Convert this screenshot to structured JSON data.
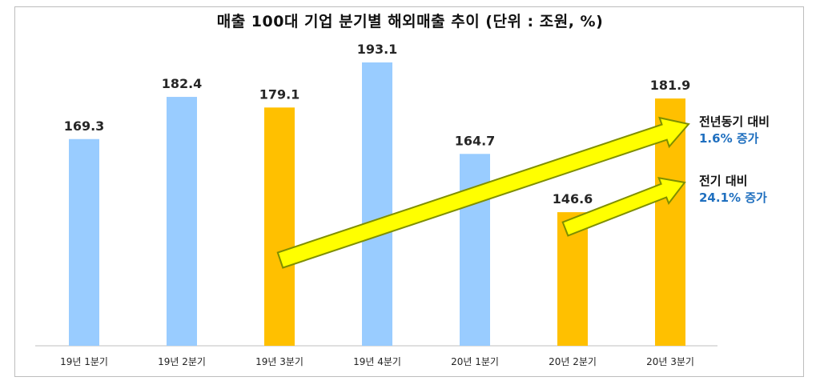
{
  "chart_data": {
    "type": "bar",
    "title": "매출 100대 기업 분기별 해외매출 추이 (단위 : 조원, %)",
    "categories": [
      "19년 1분기",
      "19년 2분기",
      "19년 3분기",
      "19년 4분기",
      "20년 1분기",
      "20년 2분기",
      "20년 3분기"
    ],
    "values": [
      169.3,
      182.4,
      179.1,
      193.1,
      164.7,
      146.6,
      181.9
    ],
    "value_labels": [
      "169.3",
      "182.4",
      "179.1",
      "193.1",
      "164.7",
      "146.6",
      "181.9"
    ],
    "highlighted": [
      false,
      false,
      true,
      false,
      false,
      true,
      true
    ],
    "ylim": [
      0,
      200
    ],
    "grid": false,
    "legend": "none",
    "colors": {
      "normal": "#99ccff",
      "highlight": "#ffc000",
      "arrow_fill": "#ffff00",
      "arrow_stroke": "#7f8f00"
    },
    "annotations": [
      {
        "heading": "전년동기 대비",
        "detail": "1.6% 증가",
        "from": "19년 3분기",
        "to": "20년 3분기"
      },
      {
        "heading": "전기 대비",
        "detail": "24.1% 증가",
        "from": "20년 2분기",
        "to": "20년 3분기"
      }
    ]
  }
}
